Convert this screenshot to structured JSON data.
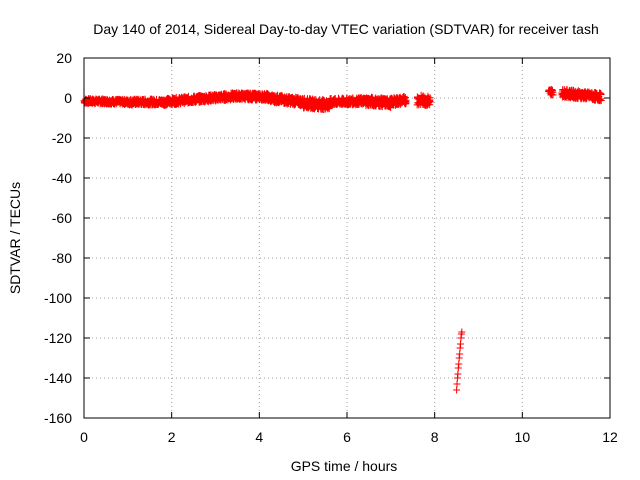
{
  "chart_data": {
    "type": "scatter",
    "title": "Day 140 of 2014, Sidereal Day-to-day VTEC variation (SDTVAR) for receiver tash",
    "xlabel": "GPS time / hours",
    "ylabel": "SDTVAR / TECUs",
    "xlim": [
      0,
      12
    ],
    "ylim": [
      -160,
      20
    ],
    "xticks": [
      "0",
      "2",
      "4",
      "6",
      "8",
      "10",
      "12"
    ],
    "yticks": [
      "20",
      "0",
      "-20",
      "-40",
      "-60",
      "-80",
      "-100",
      "-120",
      "-140",
      "-160"
    ],
    "grid": true,
    "marker": "+",
    "series": [
      {
        "name": "SDTVAR",
        "color": "#ff0000",
        "segments": [
          {
            "x_start": 0.0,
            "x_end": 1.0,
            "y_start": -1.5,
            "y_end": -2.0,
            "spread": 2.5
          },
          {
            "x_start": 1.0,
            "x_end": 1.8,
            "y_start": -2.0,
            "y_end": -2.0,
            "spread": 3.0
          },
          {
            "x_start": 1.8,
            "x_end": 2.6,
            "y_start": -2.0,
            "y_end": -0.5,
            "spread": 3.5
          },
          {
            "x_start": 2.6,
            "x_end": 3.5,
            "y_start": -0.5,
            "y_end": 1.0,
            "spread": 3.5
          },
          {
            "x_start": 3.5,
            "x_end": 4.2,
            "y_start": 1.0,
            "y_end": 0.5,
            "spread": 3.5
          },
          {
            "x_start": 4.2,
            "x_end": 5.0,
            "y_start": 0.0,
            "y_end": -2.0,
            "spread": 4.0
          },
          {
            "x_start": 5.0,
            "x_end": 5.6,
            "y_start": -2.5,
            "y_end": -3.5,
            "spread": 5.0
          },
          {
            "x_start": 5.6,
            "x_end": 6.4,
            "y_start": -2.0,
            "y_end": -1.5,
            "spread": 3.5
          },
          {
            "x_start": 6.4,
            "x_end": 7.0,
            "y_start": -1.5,
            "y_end": -2.5,
            "spread": 4.5
          },
          {
            "x_start": 7.0,
            "x_end": 7.35,
            "y_start": -2.0,
            "y_end": -1.0,
            "spread": 4.0
          },
          {
            "x_start": 7.6,
            "x_end": 7.9,
            "y_start": -1.0,
            "y_end": -1.5,
            "spread": 5.0
          },
          {
            "x_start": 10.6,
            "x_end": 10.7,
            "y_start": 3.0,
            "y_end": 3.0,
            "spread": 3.0
          },
          {
            "x_start": 10.9,
            "x_end": 11.8,
            "y_start": 2.5,
            "y_end": 0.5,
            "spread": 4.0
          }
        ],
        "outlier_points": [
          [
            8.5,
            -146
          ],
          [
            8.51,
            -143
          ],
          [
            8.52,
            -140
          ],
          [
            8.53,
            -138
          ],
          [
            8.54,
            -135
          ],
          [
            8.55,
            -133
          ],
          [
            8.56,
            -130
          ],
          [
            8.57,
            -128
          ],
          [
            8.58,
            -125
          ],
          [
            8.59,
            -123
          ],
          [
            8.6,
            -120
          ],
          [
            8.61,
            -118
          ],
          [
            8.62,
            -117
          ]
        ]
      }
    ]
  }
}
